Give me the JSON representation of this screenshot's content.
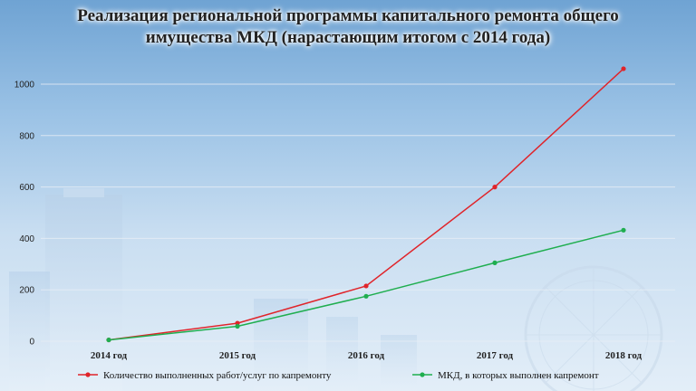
{
  "title": "Реализация региональной программы капитального ремонта общего имущества МКД (нарастающим итогом с 2014 года)",
  "colors": {
    "series1": "#e0242a",
    "series2": "#1fae4f",
    "grid": "#e8eef5"
  },
  "chart_data": {
    "type": "line",
    "x": [
      "2014 год",
      "2015 год",
      "2016 год",
      "2017 год",
      "2018 год"
    ],
    "ylim": [
      0,
      1000
    ],
    "yticks": [
      0,
      200,
      400,
      600,
      800,
      1000
    ],
    "grid": true,
    "legend": "bottom",
    "series": [
      {
        "name": "Количество выполненных работ/услуг по капремонту",
        "values": [
          5,
          70,
          215,
          600,
          1060
        ]
      },
      {
        "name": "МКД, в которых выполнен капремонт",
        "values": [
          5,
          58,
          175,
          305,
          432
        ]
      }
    ]
  }
}
